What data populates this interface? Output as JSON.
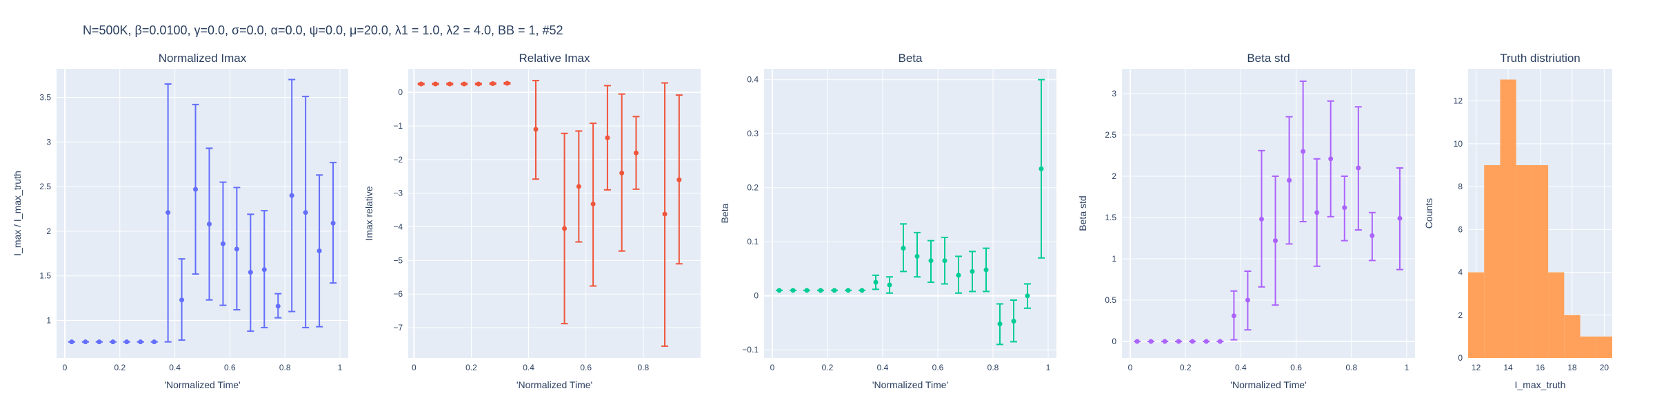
{
  "figure_title": "N=500K, β=0.0100, γ=0.0, σ=0.0,  α=0.0, ψ=0.0, μ=20.0, λ1 = 1.0, λ2 = 4.0, BB = 1, #52",
  "chart_data": [
    {
      "type": "scatter",
      "title": "Normalized Imax",
      "xlabel": "'Normalized Time'",
      "ylabel": "I_max / I_max_truth",
      "color": "#636efa",
      "xlim": [
        -0.03,
        1.03
      ],
      "ylim": [
        0.58,
        3.82
      ],
      "xticks": [
        0,
        0.2,
        0.4,
        0.6,
        0.8,
        1
      ],
      "xtick_labels": [
        "0",
        "0.2",
        "0.4",
        "0.6",
        "0.8",
        "1"
      ],
      "yticks": [
        1,
        1.5,
        2,
        2.5,
        3,
        3.5
      ],
      "ytick_labels": [
        "1",
        "1.5",
        "2",
        "2.5",
        "3",
        "3.5"
      ],
      "series": [
        {
          "x": [
            0.025,
            0.075,
            0.125,
            0.175,
            0.225,
            0.275,
            0.325,
            0.375,
            0.425,
            0.475,
            0.525,
            0.575,
            0.625,
            0.675,
            0.725,
            0.775,
            0.825,
            0.875,
            0.925,
            0.975
          ],
          "y": [
            0.76,
            0.76,
            0.76,
            0.76,
            0.76,
            0.76,
            0.76,
            2.21,
            1.23,
            2.47,
            2.08,
            1.86,
            1.8,
            1.54,
            1.57,
            1.16,
            2.4,
            2.21,
            1.78,
            2.09
          ],
          "y_low": [
            0.76,
            0.76,
            0.76,
            0.76,
            0.76,
            0.76,
            0.76,
            0.76,
            0.78,
            1.52,
            1.23,
            1.17,
            1.12,
            0.88,
            0.92,
            1.03,
            1.1,
            0.92,
            0.93,
            1.42
          ],
          "y_high": [
            0.76,
            0.76,
            0.76,
            0.76,
            0.76,
            0.76,
            0.76,
            3.65,
            1.69,
            3.42,
            2.93,
            2.55,
            2.49,
            2.19,
            2.23,
            1.3,
            3.7,
            3.51,
            2.63,
            2.77
          ]
        }
      ]
    },
    {
      "type": "scatter",
      "title": "Relative Imax",
      "xlabel": "'Normalized Time'",
      "ylabel": "Imax relative",
      "color": "#ef553b",
      "xlim": [
        -0.02,
        1.0
      ],
      "ylim": [
        -7.9,
        0.7
      ],
      "xticks": [
        0,
        0.2,
        0.4,
        0.6,
        0.8
      ],
      "xtick_labels": [
        "0",
        "0.2",
        "0.4",
        "0.6",
        "0.8"
      ],
      "yticks": [
        -7,
        -6,
        -5,
        -4,
        -3,
        -2,
        -1,
        0
      ],
      "ytick_labels": [
        "−7",
        "−6",
        "−5",
        "−4",
        "−3",
        "−2",
        "−1",
        "0"
      ],
      "series": [
        {
          "x": [
            0.025,
            0.075,
            0.125,
            0.175,
            0.225,
            0.275,
            0.325,
            0.425,
            0.525,
            0.575,
            0.625,
            0.675,
            0.725,
            0.775,
            0.875,
            0.925
          ],
          "y": [
            0.25,
            0.25,
            0.25,
            0.25,
            0.25,
            0.26,
            0.27,
            -1.1,
            -4.05,
            -2.8,
            -3.32,
            -1.35,
            -2.4,
            -1.8,
            -3.62,
            -2.6
          ],
          "y_low": [
            0.23,
            0.23,
            0.23,
            0.23,
            0.23,
            0.24,
            0.25,
            -2.58,
            -6.88,
            -4.45,
            -5.76,
            -2.9,
            -4.72,
            -2.88,
            -7.55,
            -5.1
          ],
          "y_high": [
            0.27,
            0.27,
            0.27,
            0.27,
            0.27,
            0.28,
            0.29,
            0.35,
            -1.22,
            -1.15,
            -0.92,
            0.2,
            -0.05,
            -0.72,
            0.28,
            -0.08
          ]
        }
      ]
    },
    {
      "type": "scatter",
      "title": "Beta",
      "xlabel": "'Normalized Time'",
      "ylabel": "Beta",
      "color": "#00cc96",
      "xlim": [
        -0.03,
        1.03
      ],
      "ylim": [
        -0.115,
        0.42
      ],
      "xticks": [
        0,
        0.2,
        0.4,
        0.6,
        0.8,
        1
      ],
      "xtick_labels": [
        "0",
        "0.2",
        "0.4",
        "0.6",
        "0.8",
        "1"
      ],
      "yticks": [
        -0.1,
        0,
        0.1,
        0.2,
        0.3,
        0.4
      ],
      "ytick_labels": [
        "−0.1",
        "0",
        "0.1",
        "0.2",
        "0.3",
        "0.4"
      ],
      "series": [
        {
          "x": [
            0.025,
            0.075,
            0.125,
            0.175,
            0.225,
            0.275,
            0.325,
            0.375,
            0.425,
            0.475,
            0.525,
            0.575,
            0.625,
            0.675,
            0.725,
            0.775,
            0.825,
            0.875,
            0.925,
            0.975
          ],
          "y": [
            0.01,
            0.01,
            0.01,
            0.01,
            0.01,
            0.01,
            0.01,
            0.025,
            0.02,
            0.088,
            0.073,
            0.065,
            0.065,
            0.038,
            0.045,
            0.048,
            -0.052,
            -0.047,
            0.0,
            0.235
          ],
          "y_low": [
            0.01,
            0.01,
            0.01,
            0.01,
            0.01,
            0.01,
            0.01,
            0.012,
            0.005,
            0.045,
            0.035,
            0.025,
            0.022,
            0.005,
            0.008,
            0.008,
            -0.09,
            -0.085,
            -0.023,
            0.07
          ],
          "y_high": [
            0.01,
            0.01,
            0.01,
            0.01,
            0.01,
            0.01,
            0.01,
            0.038,
            0.035,
            0.133,
            0.117,
            0.102,
            0.108,
            0.073,
            0.082,
            0.088,
            -0.015,
            -0.008,
            0.022,
            0.4
          ]
        }
      ]
    },
    {
      "type": "scatter",
      "title": "Beta std",
      "xlabel": "'Normalized Time'",
      "ylabel": "Beta std",
      "color": "#ab63fa",
      "xlim": [
        -0.03,
        1.03
      ],
      "ylim": [
        -0.2,
        3.3
      ],
      "xticks": [
        0,
        0.2,
        0.4,
        0.6,
        0.8,
        1
      ],
      "xtick_labels": [
        "0",
        "0.2",
        "0.4",
        "0.6",
        "0.8",
        "1"
      ],
      "yticks": [
        0,
        0.5,
        1,
        1.5,
        2,
        2.5,
        3
      ],
      "ytick_labels": [
        "0",
        "0.5",
        "1",
        "1.5",
        "2",
        "2.5",
        "3"
      ],
      "series": [
        {
          "x": [
            0.025,
            0.075,
            0.125,
            0.175,
            0.225,
            0.275,
            0.325,
            0.375,
            0.425,
            0.475,
            0.525,
            0.575,
            0.625,
            0.675,
            0.725,
            0.775,
            0.825,
            0.875,
            0.975
          ],
          "y": [
            0,
            0,
            0,
            0,
            0,
            0,
            0,
            0.31,
            0.5,
            1.48,
            1.22,
            1.95,
            2.3,
            1.56,
            2.21,
            1.62,
            2.1,
            1.28,
            1.49
          ],
          "y_low": [
            0,
            0,
            0,
            0,
            0,
            0,
            0,
            0.02,
            0.14,
            0.66,
            0.44,
            1.18,
            1.45,
            0.91,
            1.51,
            1.22,
            1.35,
            0.98,
            0.87
          ],
          "y_high": [
            0,
            0,
            0,
            0,
            0,
            0,
            0,
            0.61,
            0.85,
            2.31,
            2.0,
            2.72,
            3.15,
            2.21,
            2.91,
            2.0,
            2.84,
            1.56,
            2.1
          ]
        }
      ]
    },
    {
      "type": "bar",
      "title": "Truth distriution",
      "xlabel": "I_max_truth",
      "ylabel": "Counts",
      "color": "#ffa15a",
      "xlim": [
        11.5,
        20.5
      ],
      "ylim": [
        0,
        13.5
      ],
      "xticks": [
        12,
        14,
        16,
        18,
        20
      ],
      "xtick_labels": [
        "12",
        "14",
        "16",
        "18",
        "20"
      ],
      "yticks": [
        0,
        2,
        4,
        6,
        8,
        10,
        12
      ],
      "ytick_labels": [
        "0",
        "2",
        "4",
        "6",
        "8",
        "10",
        "12"
      ],
      "bin_edges": [
        11.5,
        12.5,
        13.5,
        14.5,
        15.5,
        16.5,
        17.5,
        18.5,
        19.5,
        20.5
      ],
      "counts": [
        4,
        9,
        13,
        9,
        9,
        4,
        2,
        1,
        1
      ]
    }
  ]
}
